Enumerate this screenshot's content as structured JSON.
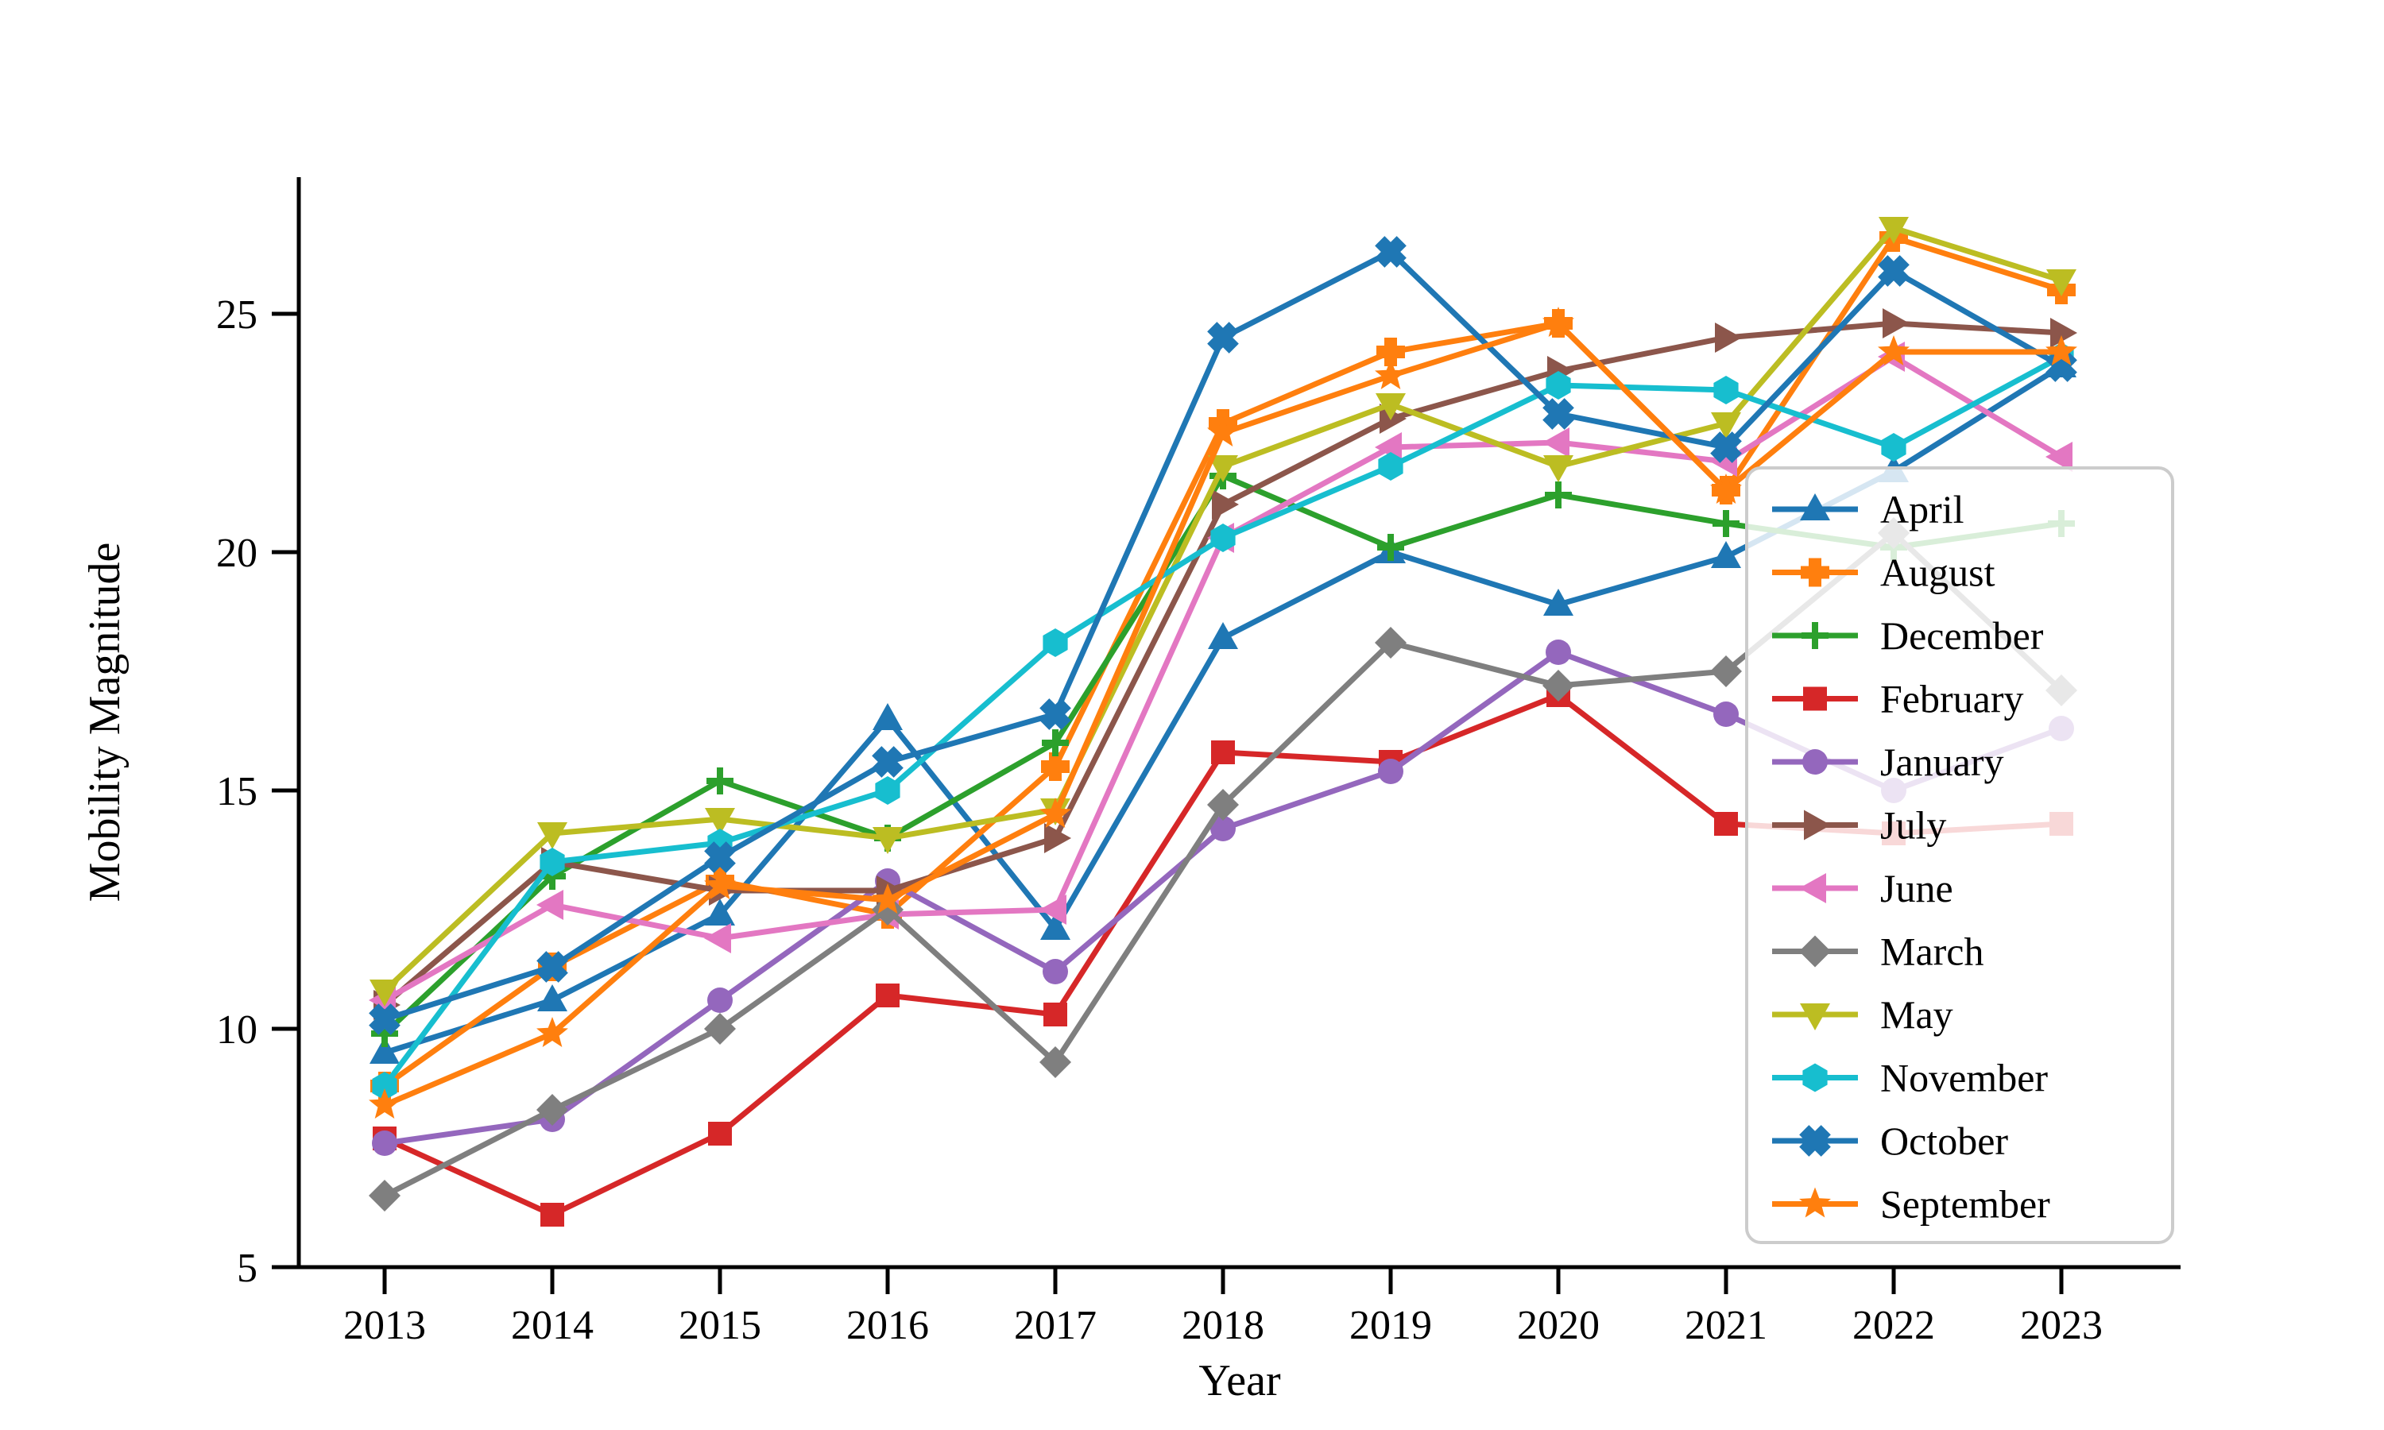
{
  "chart_data": {
    "type": "line",
    "title": "",
    "xlabel": "Year",
    "ylabel": "Mobility Magnitude",
    "x": [
      2013,
      2014,
      2015,
      2016,
      2017,
      2018,
      2019,
      2020,
      2021,
      2022,
      2023
    ],
    "xtick_labels": [
      "2013",
      "2014",
      "2015",
      "2016",
      "2017",
      "2018",
      "2019",
      "2020",
      "2021",
      "2022",
      "2023"
    ],
    "yticks": [
      5,
      10,
      15,
      20,
      25
    ],
    "ytick_labels": [
      "5",
      "10",
      "15",
      "20",
      "25"
    ],
    "ylim": [
      5,
      27.9
    ],
    "grid": false,
    "legend_position": "inside-right",
    "axis_color": "#000000",
    "background_color": "#ffffff",
    "legend_border_color": "#cccccc",
    "series": [
      {
        "name": "April",
        "color": "#1f77b4",
        "marker": "triangle-up",
        "values": [
          9.5,
          10.6,
          12.4,
          16.5,
          12.1,
          18.2,
          20.0,
          18.9,
          19.9,
          21.7,
          23.9
        ]
      },
      {
        "name": "August",
        "color": "#ff7f0e",
        "marker": "plus-filled",
        "values": [
          8.8,
          11.3,
          13.1,
          12.4,
          15.5,
          22.7,
          24.2,
          24.8,
          21.3,
          26.6,
          25.5
        ]
      },
      {
        "name": "December",
        "color": "#2ca02c",
        "marker": "plus",
        "values": [
          9.9,
          13.2,
          15.2,
          14.0,
          16.0,
          21.6,
          20.1,
          21.2,
          20.6,
          20.1,
          20.6
        ]
      },
      {
        "name": "February",
        "color": "#d62728",
        "marker": "square",
        "values": [
          7.7,
          6.1,
          7.8,
          10.7,
          10.3,
          15.8,
          15.6,
          17.0,
          14.3,
          14.1,
          14.3
        ]
      },
      {
        "name": "January",
        "color": "#9467bd",
        "marker": "circle",
        "values": [
          7.6,
          8.1,
          10.6,
          13.1,
          11.2,
          14.2,
          15.4,
          17.9,
          16.6,
          15.0,
          16.3
        ]
      },
      {
        "name": "July",
        "color": "#8c564b",
        "marker": "triangle-right",
        "values": [
          10.5,
          13.5,
          12.9,
          12.9,
          14.0,
          21.0,
          22.8,
          23.8,
          24.5,
          24.8,
          24.6
        ]
      },
      {
        "name": "June",
        "color": "#e377c2",
        "marker": "triangle-left",
        "values": [
          10.6,
          12.6,
          11.9,
          12.4,
          12.5,
          20.3,
          22.2,
          22.3,
          21.9,
          24.1,
          22.0
        ]
      },
      {
        "name": "March",
        "color": "#7f7f7f",
        "marker": "diamond",
        "values": [
          6.5,
          8.3,
          10.0,
          12.5,
          9.3,
          14.7,
          18.1,
          17.2,
          17.5,
          20.4,
          17.1
        ]
      },
      {
        "name": "May",
        "color": "#bcbd22",
        "marker": "triangle-down",
        "values": [
          10.8,
          14.1,
          14.4,
          14.0,
          14.6,
          21.8,
          23.1,
          21.8,
          22.7,
          26.8,
          25.7
        ]
      },
      {
        "name": "November",
        "color": "#17becf",
        "marker": "hexagon",
        "values": [
          8.8,
          13.5,
          13.9,
          15.0,
          18.1,
          20.3,
          21.8,
          23.5,
          23.4,
          22.2,
          24.1
        ]
      },
      {
        "name": "October",
        "color": "#1f77b4",
        "marker": "x",
        "values": [
          10.2,
          11.3,
          13.6,
          15.6,
          16.6,
          24.5,
          26.3,
          22.9,
          22.2,
          25.9,
          23.9
        ]
      },
      {
        "name": "September",
        "color": "#ff7f0e",
        "marker": "star",
        "values": [
          8.4,
          9.9,
          13.0,
          12.7,
          14.5,
          22.5,
          23.7,
          24.8,
          21.3,
          24.2,
          24.2
        ]
      }
    ]
  }
}
